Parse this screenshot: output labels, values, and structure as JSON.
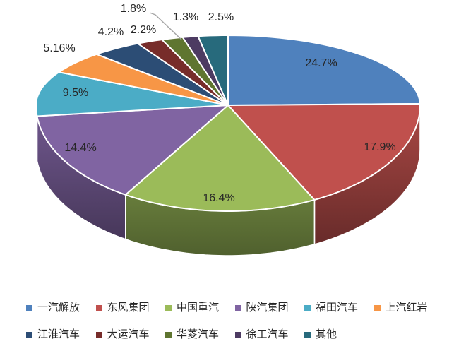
{
  "background": "#FFFFFF",
  "chart_data": {
    "type": "pie",
    "style": "3d",
    "title": "",
    "direction": "clockwise",
    "start_angle_deg": 0,
    "legend_position": "bottom",
    "slices": [
      {
        "label": "一汽解放",
        "value": 24.7,
        "display": "24.7%",
        "color": "#4F81BD"
      },
      {
        "label": "东风集团",
        "value": 17.9,
        "display": "17.9%",
        "color": "#C0504D"
      },
      {
        "label": "中国重汽",
        "value": 16.4,
        "display": "16.4%",
        "color": "#9BBB59"
      },
      {
        "label": "陕汽集团",
        "value": 14.4,
        "display": "14.4%",
        "color": "#8064A2"
      },
      {
        "label": "福田汽车",
        "value": 9.5,
        "display": "9.5%",
        "color": "#4BACC6"
      },
      {
        "label": "上汽红岩",
        "value": 5.16,
        "display": "5.16%",
        "color": "#F79646"
      },
      {
        "label": "江淮汽车",
        "value": 4.2,
        "display": "4.2%",
        "color": "#2C4D75"
      },
      {
        "label": "大运汽车",
        "value": 2.2,
        "display": "2.2%",
        "color": "#772C2A"
      },
      {
        "label": "华菱汽车",
        "value": 1.8,
        "display": "1.8%",
        "color": "#5F7530"
      },
      {
        "label": "徐工汽车",
        "value": 1.3,
        "display": "1.3%",
        "color": "#4D3B62"
      },
      {
        "label": "其他",
        "value": 2.5,
        "display": "2.5%",
        "color": "#276A7C"
      }
    ],
    "label_line_color": "#A6A6A6",
    "label_text_color": "#262626"
  }
}
